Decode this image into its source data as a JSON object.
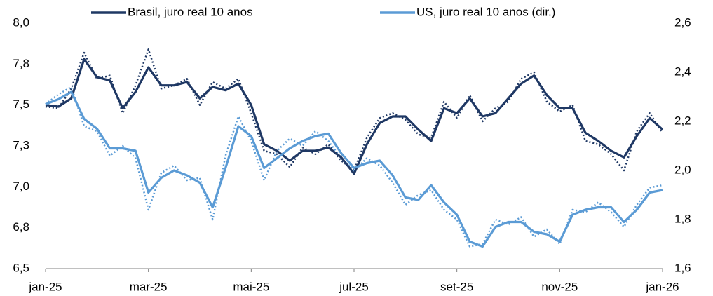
{
  "chart_data": {
    "type": "line",
    "categories": [
      "jan-25",
      null,
      null,
      null,
      null,
      null,
      null,
      null,
      "mar-25",
      null,
      null,
      null,
      null,
      null,
      null,
      null,
      "mai-25",
      null,
      null,
      null,
      null,
      null,
      null,
      null,
      "jul-25",
      null,
      null,
      null,
      null,
      null,
      null,
      null,
      "set-25",
      null,
      null,
      null,
      null,
      null,
      null,
      null,
      "nov-25",
      null,
      null,
      null,
      null,
      null,
      null,
      null,
      "jan-26"
    ],
    "series": [
      {
        "color": "#1f3864",
        "dash": "dotted",
        "axis": "y",
        "values": [
          7.49,
          7.48,
          7.6,
          7.82,
          7.66,
          7.68,
          7.45,
          7.62,
          7.84,
          7.6,
          7.62,
          7.66,
          7.5,
          7.64,
          7.6,
          7.66,
          7.45,
          7.22,
          7.2,
          7.12,
          7.24,
          7.2,
          7.26,
          7.16,
          7.1,
          7.3,
          7.42,
          7.45,
          7.41,
          7.32,
          7.3,
          7.52,
          7.42,
          7.56,
          7.4,
          7.48,
          7.52,
          7.66,
          7.7,
          7.52,
          7.46,
          7.5,
          7.28,
          7.26,
          7.2,
          7.1,
          7.34,
          7.45,
          7.33
        ]
      },
      {
        "color": "#5b9bd5",
        "dash": "dotted",
        "axis": "y2",
        "values": [
          2.27,
          2.31,
          2.34,
          2.18,
          2.16,
          2.06,
          2.1,
          2.05,
          1.84,
          1.99,
          2.02,
          1.96,
          1.97,
          1.8,
          2.06,
          2.22,
          2.12,
          1.96,
          2.08,
          2.13,
          2.1,
          2.16,
          2.12,
          2.05,
          2.0,
          2.05,
          2.02,
          1.95,
          1.86,
          1.9,
          1.92,
          1.84,
          1.8,
          1.69,
          1.7,
          1.8,
          1.78,
          1.81,
          1.73,
          1.76,
          1.7,
          1.84,
          1.83,
          1.87,
          1.83,
          1.77,
          1.86,
          1.93,
          1.94
        ]
      },
      {
        "name": "Brasil, juro real 10 anos",
        "color": "#1f3864",
        "dash": "solid",
        "axis": "y",
        "values": [
          7.5,
          7.49,
          7.54,
          7.78,
          7.67,
          7.65,
          7.48,
          7.58,
          7.73,
          7.62,
          7.62,
          7.64,
          7.54,
          7.61,
          7.59,
          7.63,
          7.5,
          7.26,
          7.22,
          7.16,
          7.22,
          7.22,
          7.24,
          7.18,
          7.08,
          7.26,
          7.39,
          7.43,
          7.43,
          7.35,
          7.28,
          7.48,
          7.45,
          7.54,
          7.43,
          7.45,
          7.54,
          7.63,
          7.68,
          7.56,
          7.48,
          7.48,
          7.33,
          7.28,
          7.22,
          7.18,
          7.31,
          7.42,
          7.35
        ]
      },
      {
        "name": "US, juro real 10 anos (dir.)",
        "color": "#5b9bd5",
        "dash": "solid",
        "axis": "y2",
        "values": [
          2.27,
          2.29,
          2.32,
          2.21,
          2.17,
          2.09,
          2.09,
          2.08,
          1.91,
          1.97,
          2.0,
          1.98,
          1.95,
          1.85,
          2.01,
          2.18,
          2.14,
          2.01,
          2.05,
          2.09,
          2.12,
          2.14,
          2.15,
          2.07,
          2.01,
          2.03,
          2.04,
          1.98,
          1.89,
          1.88,
          1.94,
          1.87,
          1.82,
          1.71,
          1.69,
          1.77,
          1.79,
          1.79,
          1.75,
          1.74,
          1.71,
          1.82,
          1.84,
          1.85,
          1.85,
          1.79,
          1.84,
          1.91,
          1.92
        ]
      }
    ],
    "ylim": [
      6.5,
      8.0
    ],
    "yticks": [
      {
        "value": 6.5,
        "label": "6,5"
      },
      {
        "value": 6.75,
        "label": "6,8"
      },
      {
        "value": 7.0,
        "label": "7,0"
      },
      {
        "value": 7.25,
        "label": "7,3"
      },
      {
        "value": 7.5,
        "label": "7,5"
      },
      {
        "value": 7.75,
        "label": "7,8"
      },
      {
        "value": 8.0,
        "label": "8,0"
      }
    ],
    "y2lim": [
      1.6,
      2.6
    ],
    "y2ticks": [
      {
        "value": 1.6,
        "label": "1,6"
      },
      {
        "value": 1.8,
        "label": "1,8"
      },
      {
        "value": 2.0,
        "label": "2,0"
      },
      {
        "value": 2.2,
        "label": "2,2"
      },
      {
        "value": 2.4,
        "label": "2,4"
      },
      {
        "value": 2.6,
        "label": "2,6"
      }
    ],
    "legend": "top"
  }
}
